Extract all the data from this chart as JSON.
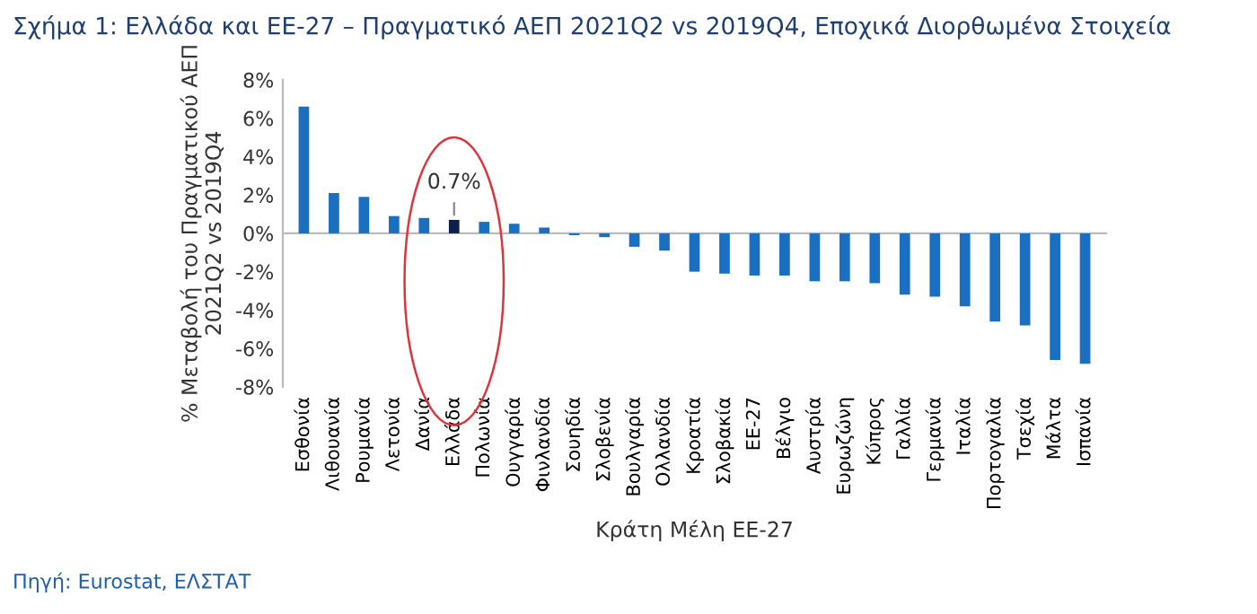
{
  "chart_data": {
    "type": "bar",
    "title": "Σχήμα 1: Ελλάδα και ΕΕ-27 – Πραγματικό ΑΕΠ 2021Q2 vs 2019Q4, Εποχικά Διορθωμένα Στοιχεία",
    "xlabel": "Κράτη Μέλη ΕΕ-27",
    "ylabel": "% Μεταβολή του Πραγματικού ΑΕΠ\n2021Q2 vs 2019Q4",
    "categories": [
      "Εσθονία",
      "Λιθουανία",
      "Ρουμανία",
      "Λετονία",
      "Δανία",
      "Ελλάδα",
      "Πολωνία",
      "Ουγγαρία",
      "Φινλανδία",
      "Σουηδία",
      "Σλοβενία",
      "Βουλγαρία",
      "Ολλανδία",
      "Κροατία",
      "Σλοβακία",
      "ΕΕ-27",
      "Βέλγιο",
      "Αυστρία",
      "Ευρωζώνη",
      "Κύπρος",
      "Γαλλία",
      "Γερμανία",
      "Ιταλία",
      "Πορτογαλία",
      "Τσεχία",
      "Μάλτα",
      "Ισπανία"
    ],
    "values": [
      6.6,
      2.1,
      1.9,
      0.9,
      0.8,
      0.7,
      0.6,
      0.5,
      0.3,
      -0.1,
      -0.2,
      -0.7,
      -0.9,
      -2.0,
      -2.1,
      -2.2,
      -2.2,
      -2.5,
      -2.5,
      -2.6,
      -3.2,
      -3.3,
      -3.8,
      -4.6,
      -4.8,
      -6.6,
      -6.8
    ],
    "colors": [
      "#1a6fc0",
      "#1a6fc0",
      "#1a6fc0",
      "#1a6fc0",
      "#1a6fc0",
      "#0b1f4b",
      "#1a6fc0",
      "#1a6fc0",
      "#1a6fc0",
      "#1a6fc0",
      "#1a6fc0",
      "#1a6fc0",
      "#1a6fc0",
      "#1a6fc0",
      "#1a6fc0",
      "#1a6fc0",
      "#1a6fc0",
      "#1a6fc0",
      "#1a6fc0",
      "#1a6fc0",
      "#1a6fc0",
      "#1a6fc0",
      "#1a6fc0",
      "#1a6fc0",
      "#1a6fc0",
      "#1a6fc0",
      "#1a6fc0"
    ],
    "ylim": [
      -8,
      8
    ],
    "yticks": [
      {
        "value": -8,
        "label": "-8%"
      },
      {
        "value": -6,
        "label": "-6%"
      },
      {
        "value": -4,
        "label": "-4%"
      },
      {
        "value": -2,
        "label": "-2%"
      },
      {
        "value": 0,
        "label": "0%"
      },
      {
        "value": 2,
        "label": "2%"
      },
      {
        "value": 4,
        "label": "4%"
      },
      {
        "value": 6,
        "label": "6%"
      },
      {
        "value": 8,
        "label": "8%"
      }
    ],
    "annotations": [
      {
        "text": "0.7%",
        "x": "Ελλάδα",
        "y": 0.7
      },
      "Πηγή: Eurostat, ΕΛΣΤΑΤ"
    ]
  }
}
